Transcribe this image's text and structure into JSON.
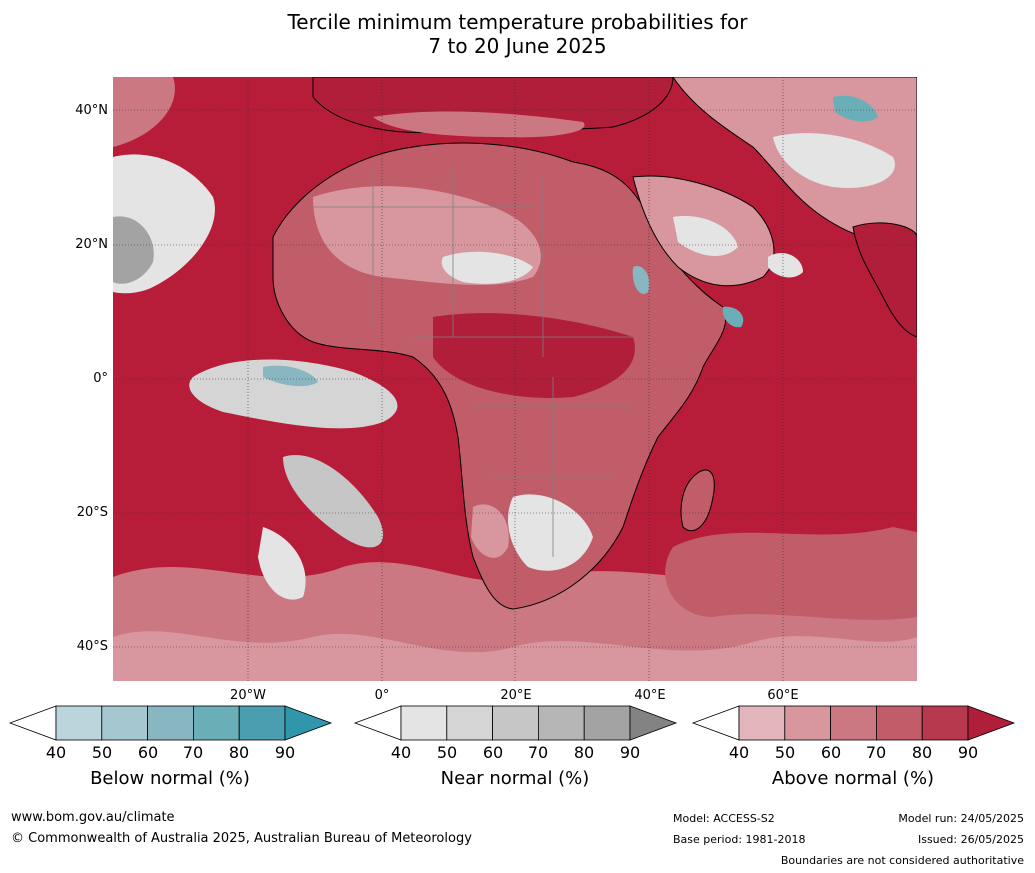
{
  "title": {
    "line1": "Tercile minimum temperature probabilities for",
    "line2": "7 to 20 June 2025"
  },
  "map": {
    "region": "Africa and surrounding oceans",
    "lat_labels": [
      "40°N",
      "20°N",
      "0°",
      "20°S",
      "40°S"
    ],
    "lon_labels": [
      "20°W",
      "0°",
      "20°E",
      "40°E",
      "60°E"
    ],
    "dominant_category": "Above normal",
    "colors": {
      "ocean_base": "#b71c38",
      "land_outline": "#000000",
      "country_border": "#7f7f7f",
      "grid": "#333333"
    }
  },
  "colorbars": [
    {
      "name": "below",
      "title": "Below normal (%)",
      "ticks": [
        "40",
        "50",
        "60",
        "70",
        "80",
        "90"
      ],
      "colors": [
        "#ffffff",
        "#bcd4dc",
        "#a5c7cf",
        "#88b7c2",
        "#6aaeb8",
        "#4a9eb0",
        "#3096ab"
      ]
    },
    {
      "name": "near",
      "title": "Near normal (%)",
      "ticks": [
        "40",
        "50",
        "60",
        "70",
        "80",
        "90"
      ],
      "colors": [
        "#ffffff",
        "#e4e4e4",
        "#d5d5d5",
        "#c6c6c6",
        "#b6b6b6",
        "#a3a3a3",
        "#838383"
      ]
    },
    {
      "name": "above",
      "title": "Above normal (%)",
      "ticks": [
        "40",
        "50",
        "60",
        "70",
        "80",
        "90"
      ],
      "colors": [
        "#ffffff",
        "#e2b5bc",
        "#d8979f",
        "#cc7882",
        "#c15c69",
        "#b7394e",
        "#b01e3a"
      ]
    }
  ],
  "footer": {
    "website": "www.bom.gov.au/climate",
    "copyright": "© Commonwealth of Australia 2025, Australian Bureau of Meteorology",
    "model": "Model: ACCESS-S2",
    "base_period": "Base period: 1981-2018",
    "model_run": "Model run: 24/05/2025",
    "issued": "Issued: 26/05/2025",
    "disclaimer": "Boundaries are not considered authoritative"
  }
}
